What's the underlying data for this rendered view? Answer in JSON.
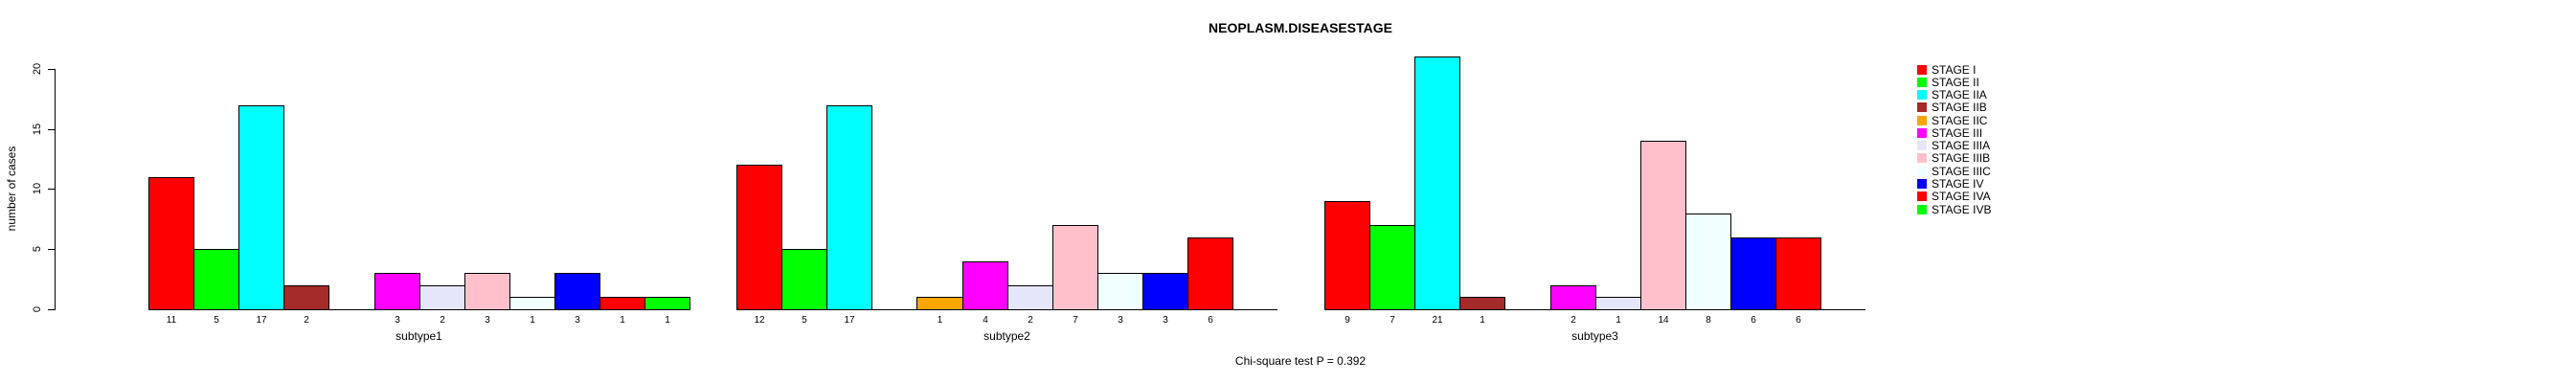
{
  "title": "NEOPLASM.DISEASESTAGE",
  "footer_annotation": "Chi-square test P = 0.392",
  "chart_data": {
    "type": "bar",
    "title": "NEOPLASM.DISEASESTAGE",
    "xlabel": "",
    "ylabel": "number of cases",
    "ylim": [
      0,
      20
    ],
    "yticks": [
      0,
      5,
      10,
      15,
      20
    ],
    "grid": false,
    "legend_position": "right",
    "annotation": "Chi-square test P = 0.392",
    "categories": [
      "STAGE I",
      "STAGE II",
      "STAGE IIA",
      "STAGE IIB",
      "STAGE IIC",
      "STAGE III",
      "STAGE IIIA",
      "STAGE IIIB",
      "STAGE IIIC",
      "STAGE IV",
      "STAGE IVA",
      "STAGE IVB"
    ],
    "colors": [
      "#FF0000",
      "#00FF00",
      "#00FFFF",
      "#A52A2A",
      "#FFA500",
      "#FF00FF",
      "#E6E6FA",
      "#FFC0CB",
      "#F0FFFF",
      "#0000FF",
      "#FF0000",
      "#00FF00"
    ],
    "series": [
      {
        "name": "subtype1",
        "values": [
          11,
          5,
          17,
          2,
          0,
          3,
          2,
          3,
          1,
          3,
          1,
          1
        ]
      },
      {
        "name": "subtype2",
        "values": [
          12,
          5,
          17,
          0,
          1,
          4,
          2,
          7,
          3,
          3,
          6,
          0
        ]
      },
      {
        "name": "subtype3",
        "values": [
          9,
          7,
          21,
          1,
          0,
          2,
          1,
          14,
          8,
          6,
          6,
          0
        ]
      }
    ]
  }
}
